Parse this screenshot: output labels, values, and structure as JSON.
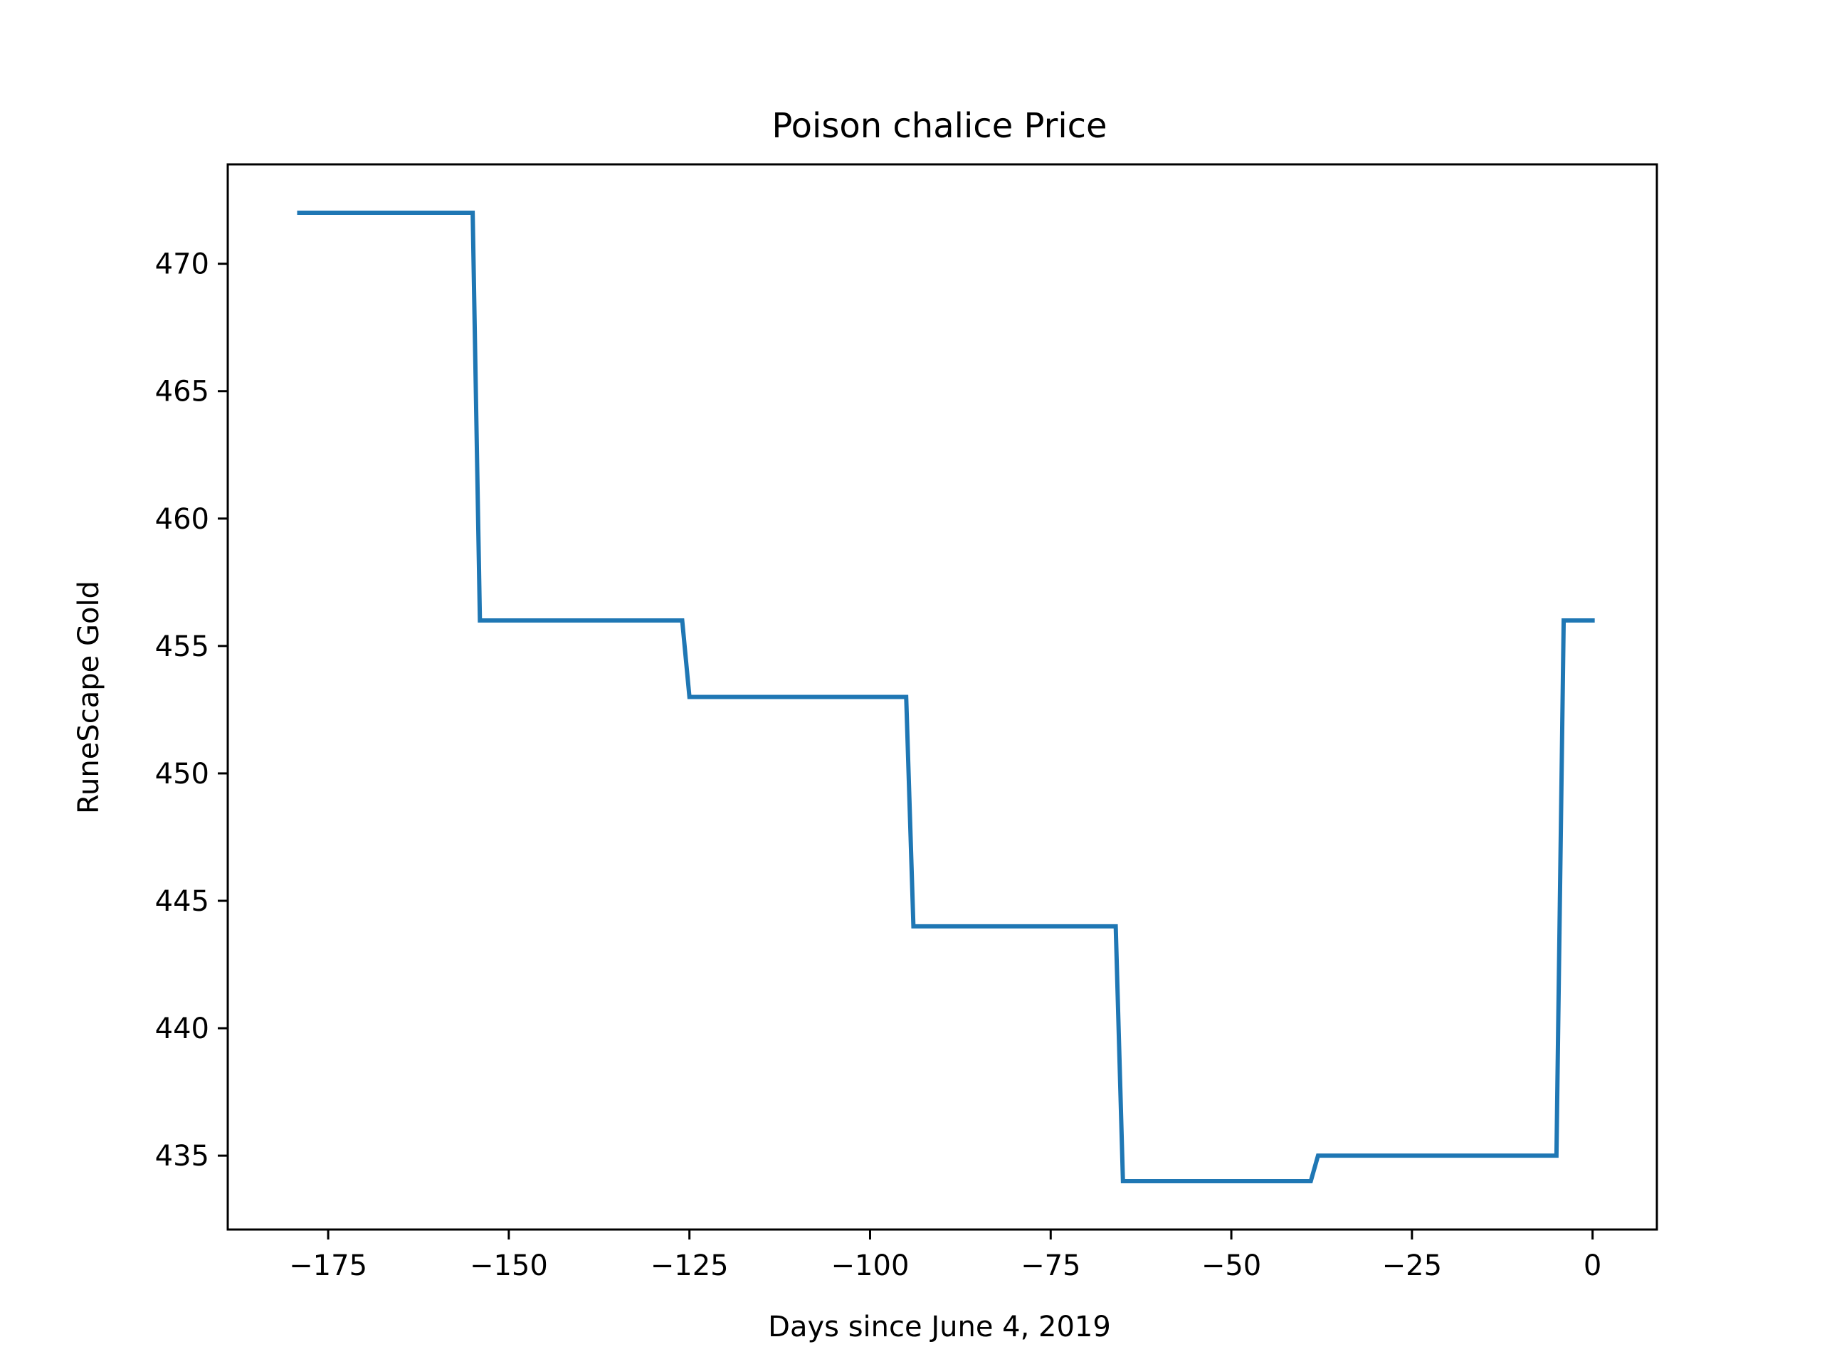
{
  "chart_data": {
    "type": "line",
    "title": "Poison chalice Price",
    "xlabel": "Days since June 4, 2019",
    "ylabel": "RuneScape Gold",
    "xlim": [
      -188.9,
      8.9
    ],
    "ylim": [
      432.1,
      473.9
    ],
    "x_ticks": [
      -175,
      -150,
      -125,
      -100,
      -75,
      -50,
      -25,
      0
    ],
    "x_tick_labels": [
      "−175",
      "−150",
      "−125",
      "−100",
      "−75",
      "−50",
      "−25",
      "0"
    ],
    "y_ticks": [
      435,
      440,
      445,
      450,
      455,
      460,
      465,
      470
    ],
    "y_tick_labels": [
      "435",
      "440",
      "445",
      "450",
      "455",
      "460",
      "465",
      "470"
    ],
    "grid": false,
    "series": [
      {
        "color": "#1f77b4",
        "x": [
          -179,
          -155,
          -154,
          -126,
          -125,
          -95,
          -94,
          -66,
          -65,
          -39,
          -38,
          -5,
          -4,
          0
        ],
        "y": [
          472,
          472,
          456,
          456,
          453,
          453,
          444,
          444,
          434,
          434,
          435,
          435,
          456,
          456
        ]
      }
    ]
  }
}
